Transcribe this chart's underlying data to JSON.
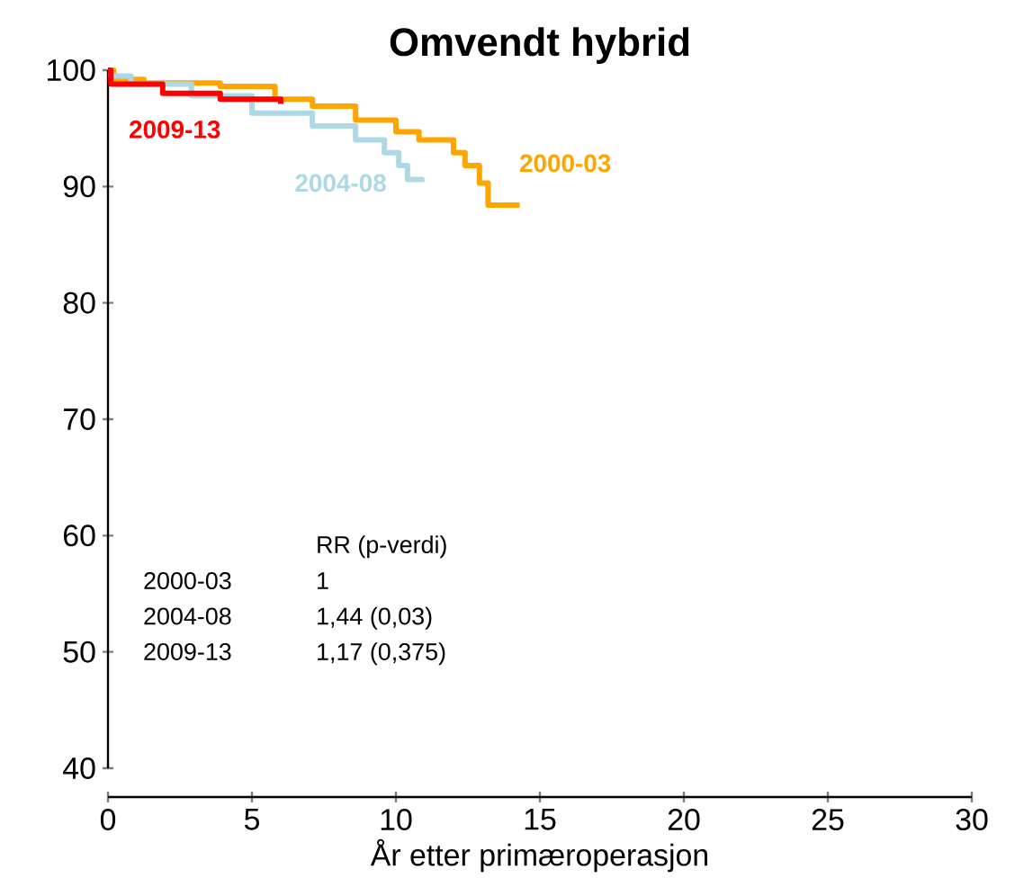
{
  "chart_data": {
    "type": "step",
    "title": "Omvendt hybrid",
    "xlabel": "År etter primæroperasjon",
    "xlim": [
      0,
      30
    ],
    "xticks": [
      0,
      5,
      10,
      15,
      20,
      25,
      30
    ],
    "ylim": [
      40,
      100
    ],
    "yticks": [
      40,
      50,
      60,
      70,
      80,
      90,
      100
    ],
    "grid": false,
    "legend": false,
    "series": [
      {
        "name": "2000-03",
        "color": "#ffa500",
        "x": [
          0,
          0.2,
          1.25,
          3.9,
          5.8,
          7.1,
          8.6,
          10,
          10.8,
          12,
          12.4,
          12.9,
          13.2,
          14.3
        ],
        "values": [
          100,
          99.2,
          98.9,
          98.6,
          97.5,
          96.9,
          95.7,
          94.7,
          94,
          92.9,
          91.8,
          90.3,
          88.4,
          88.4
        ]
      },
      {
        "name": "2004-08",
        "color": "#add8e6",
        "x": [
          0,
          0.1,
          0.8,
          2.9,
          5,
          7.1,
          8.6,
          9.6,
          10.1,
          10.4,
          10.9
        ],
        "values": [
          100,
          99.5,
          98.8,
          97.8,
          96.3,
          95.2,
          94,
          92.9,
          91.8,
          90.6,
          90.4
        ]
      },
      {
        "name": "2009-13",
        "color": "#ff0000",
        "x": [
          0,
          0.1,
          1.9,
          3.9,
          6
        ],
        "values": [
          100,
          98.8,
          98,
          97.5,
          97.1
        ]
      }
    ],
    "annotations": [
      "RR (p-verdi)",
      "2000-03",
      "1",
      "2004-08",
      "1,44 (0,03)",
      "2009-13",
      "1,17 (0,375)"
    ]
  }
}
